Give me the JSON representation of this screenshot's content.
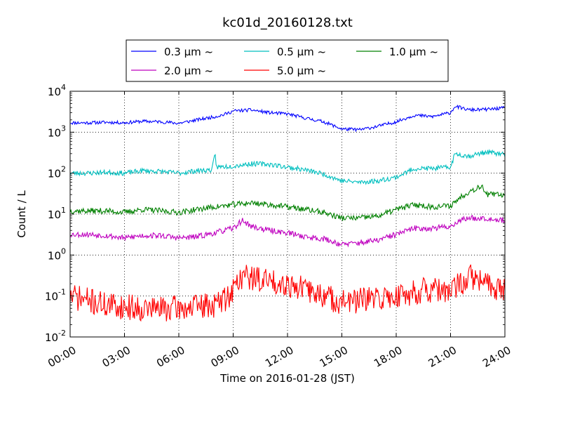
{
  "chart_data": {
    "type": "line",
    "title": "kc01d_20160128.txt",
    "xlabel": "Time on 2016-01-28 (JST)",
    "ylabel": "Count / L",
    "yscale": "log",
    "xlim": [
      "00:00",
      "24:00"
    ],
    "ylim": [
      0.01,
      10000
    ],
    "x_ticks": [
      "00:00",
      "03:00",
      "06:00",
      "09:00",
      "12:00",
      "15:00",
      "18:00",
      "21:00",
      "24:00"
    ],
    "y_ticks": [
      {
        "base": "10",
        "exp": "-2"
      },
      {
        "base": "10",
        "exp": "-1"
      },
      {
        "base": "10",
        "exp": "0"
      },
      {
        "base": "10",
        "exp": "1"
      },
      {
        "base": "10",
        "exp": "2"
      },
      {
        "base": "10",
        "exp": "3"
      },
      {
        "base": "10",
        "exp": "4"
      }
    ],
    "grid": true,
    "legend_position": "top-center",
    "series": [
      {
        "name": "0.3 μm ~",
        "color": "#0000ff",
        "noise": 0.04,
        "seed": 11,
        "points": [
          [
            "00:00",
            1700
          ],
          [
            "01:00",
            1700
          ],
          [
            "02:00",
            1750
          ],
          [
            "03:00",
            1700
          ],
          [
            "04:00",
            1850
          ],
          [
            "05:00",
            1800
          ],
          [
            "06:00",
            1650
          ],
          [
            "07:00",
            2000
          ],
          [
            "08:00",
            2400
          ],
          [
            "08:30",
            2700
          ],
          [
            "09:00",
            3300
          ],
          [
            "10:00",
            3500
          ],
          [
            "11:00",
            3000
          ],
          [
            "12:00",
            2800
          ],
          [
            "13:00",
            2200
          ],
          [
            "14:00",
            1800
          ],
          [
            "15:00",
            1200
          ],
          [
            "16:00",
            1150
          ],
          [
            "17:00",
            1400
          ],
          [
            "18:00",
            1800
          ],
          [
            "19:00",
            2600
          ],
          [
            "20:00",
            2400
          ],
          [
            "21:00",
            3000
          ],
          [
            "21:15",
            4300
          ],
          [
            "22:00",
            3500
          ],
          [
            "23:00",
            3600
          ],
          [
            "24:00",
            3900
          ]
        ]
      },
      {
        "name": "0.5 μm ~",
        "color": "#00bfbf",
        "noise": 0.06,
        "seed": 23,
        "points": [
          [
            "00:00",
            100
          ],
          [
            "01:00",
            100
          ],
          [
            "02:00",
            105
          ],
          [
            "03:00",
            100
          ],
          [
            "04:00",
            115
          ],
          [
            "05:00",
            110
          ],
          [
            "06:00",
            100
          ],
          [
            "07:00",
            115
          ],
          [
            "07:50",
            120
          ],
          [
            "08:00",
            290
          ],
          [
            "08:05",
            140
          ],
          [
            "09:00",
            150
          ],
          [
            "10:00",
            170
          ],
          [
            "11:00",
            165
          ],
          [
            "12:00",
            140
          ],
          [
            "13:00",
            120
          ],
          [
            "14:00",
            95
          ],
          [
            "15:00",
            65
          ],
          [
            "16:00",
            60
          ],
          [
            "17:00",
            65
          ],
          [
            "18:00",
            80
          ],
          [
            "19:00",
            130
          ],
          [
            "20:00",
            130
          ],
          [
            "21:00",
            140
          ],
          [
            "21:15",
            300
          ],
          [
            "22:00",
            260
          ],
          [
            "23:00",
            330
          ],
          [
            "24:00",
            280
          ]
        ]
      },
      {
        "name": "1.0 μm ~",
        "color": "#008000",
        "noise": 0.07,
        "seed": 37,
        "points": [
          [
            "00:00",
            12
          ],
          [
            "01:00",
            12
          ],
          [
            "02:00",
            12
          ],
          [
            "03:00",
            11
          ],
          [
            "04:00",
            13
          ],
          [
            "05:00",
            12
          ],
          [
            "06:00",
            11
          ],
          [
            "07:00",
            13
          ],
          [
            "08:00",
            15
          ],
          [
            "09:00",
            17
          ],
          [
            "10:00",
            19
          ],
          [
            "11:00",
            17
          ],
          [
            "12:00",
            15
          ],
          [
            "13:00",
            13
          ],
          [
            "14:00",
            11
          ],
          [
            "15:00",
            8
          ],
          [
            "16:00",
            8
          ],
          [
            "17:00",
            9
          ],
          [
            "18:00",
            13
          ],
          [
            "19:00",
            17
          ],
          [
            "20:00",
            15
          ],
          [
            "21:00",
            16
          ],
          [
            "21:30",
            25
          ],
          [
            "22:00",
            35
          ],
          [
            "22:45",
            50
          ],
          [
            "23:00",
            30
          ],
          [
            "24:00",
            30
          ]
        ]
      },
      {
        "name": "2.0 μm ~",
        "color": "#bf00bf",
        "noise": 0.07,
        "seed": 53,
        "points": [
          [
            "00:00",
            3.2
          ],
          [
            "01:00",
            3.2
          ],
          [
            "02:00",
            3
          ],
          [
            "03:00",
            2.6
          ],
          [
            "04:00",
            3
          ],
          [
            "05:00",
            3
          ],
          [
            "06:00",
            2.6
          ],
          [
            "07:00",
            2.8
          ],
          [
            "08:00",
            3.5
          ],
          [
            "09:00",
            4.5
          ],
          [
            "09:30",
            7
          ],
          [
            "10:00",
            5
          ],
          [
            "11:00",
            4
          ],
          [
            "12:00",
            3.5
          ],
          [
            "13:00",
            2.8
          ],
          [
            "14:00",
            2.5
          ],
          [
            "15:00",
            1.8
          ],
          [
            "16:00",
            2
          ],
          [
            "17:00",
            2.3
          ],
          [
            "18:00",
            3.2
          ],
          [
            "19:00",
            4.5
          ],
          [
            "20:00",
            4.5
          ],
          [
            "21:00",
            5
          ],
          [
            "21:30",
            7
          ],
          [
            "22:00",
            8
          ],
          [
            "23:00",
            8
          ],
          [
            "24:00",
            7
          ]
        ]
      },
      {
        "name": "5.0 μm ~",
        "color": "#ff0000",
        "noise": 0.32,
        "seed": 71,
        "points": [
          [
            "00:00",
            0.1
          ],
          [
            "02:00",
            0.06
          ],
          [
            "04:00",
            0.05
          ],
          [
            "06:00",
            0.05
          ],
          [
            "08:00",
            0.06
          ],
          [
            "08:45",
            0.1
          ],
          [
            "09:30",
            0.32
          ],
          [
            "10:30",
            0.25
          ],
          [
            "12:00",
            0.2
          ],
          [
            "13:30",
            0.12
          ],
          [
            "15:00",
            0.07
          ],
          [
            "16:30",
            0.08
          ],
          [
            "18:00",
            0.1
          ],
          [
            "19:30",
            0.14
          ],
          [
            "21:00",
            0.12
          ],
          [
            "22:00",
            0.3
          ],
          [
            "23:00",
            0.2
          ],
          [
            "24:00",
            0.14
          ]
        ]
      }
    ]
  }
}
